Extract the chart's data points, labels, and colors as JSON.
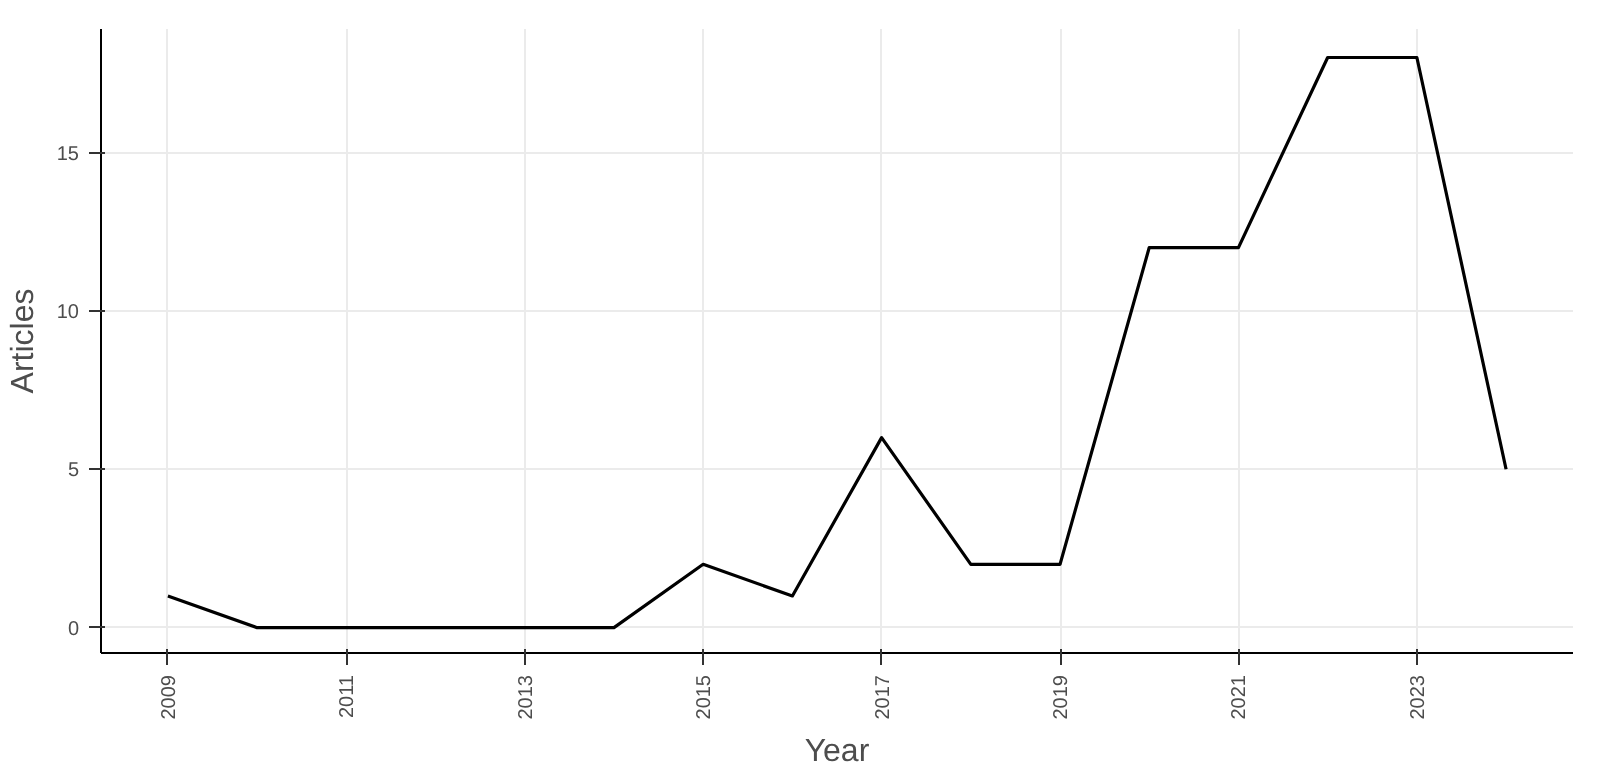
{
  "chart_data": {
    "type": "line",
    "xlabel": "Year",
    "ylabel": "Articles",
    "x": [
      2009,
      2010,
      2011,
      2012,
      2013,
      2014,
      2015,
      2016,
      2017,
      2018,
      2019,
      2020,
      2021,
      2022,
      2023,
      2024
    ],
    "series": [
      {
        "color": "#000000",
        "values": [
          1,
          0,
          0,
          0,
          0,
          0,
          2,
          1,
          6,
          2,
          2,
          12,
          12,
          18,
          18,
          5
        ]
      }
    ],
    "xlim": [
      2008.25,
      2024.75
    ],
    "ylim": [
      -0.8,
      18.9
    ],
    "xticks": [
      2009,
      2011,
      2013,
      2015,
      2017,
      2019,
      2021,
      2023
    ],
    "yticks": [
      0,
      5,
      10,
      15
    ],
    "grid": true,
    "marker": "none",
    "line_style": "solid"
  }
}
